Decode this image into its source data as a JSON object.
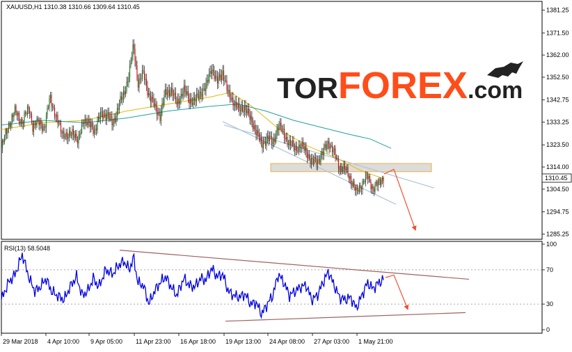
{
  "chart_data": [
    {
      "type": "candlestick",
      "panel": "price",
      "symbol_label": "XAUUSD,H1",
      "ohlc_readout": [
        "1310.38",
        "1310.66",
        "1309.64",
        "1310.45"
      ],
      "current_price_label": "1310.45",
      "ylim": [
        1283.0,
        1385.0
      ],
      "y_ticks": [
        "1381.25",
        "1371.50",
        "1362.00",
        "1352.50",
        "1342.75",
        "1333.25",
        "1323.50",
        "1314.00",
        "1304.50",
        "1294.75",
        "1285.25"
      ],
      "y_tick_values": [
        1381.25,
        1371.5,
        1362.0,
        1352.5,
        1342.75,
        1333.25,
        1323.5,
        1314.0,
        1304.5,
        1294.75,
        1285.25
      ],
      "x_ticks": [
        "29 Mar 2018",
        "4 Apr 10:00",
        "9 Apr 05:00",
        "11 Apr 23:00",
        "16 Apr 18:00",
        "19 Apr 13:00",
        "24 Apr 08:00",
        "27 Apr 03:00",
        "1 May 21:00"
      ],
      "price_path": [
        [
          0,
          1322
        ],
        [
          10,
          1332
        ],
        [
          20,
          1338
        ],
        [
          30,
          1333
        ],
        [
          40,
          1340
        ],
        [
          45,
          1331
        ],
        [
          55,
          1334
        ],
        [
          62,
          1330
        ],
        [
          70,
          1345
        ],
        [
          78,
          1335
        ],
        [
          86,
          1330
        ],
        [
          95,
          1326
        ],
        [
          103,
          1330
        ],
        [
          110,
          1324
        ],
        [
          118,
          1335
        ],
        [
          126,
          1332
        ],
        [
          134,
          1330
        ],
        [
          142,
          1336
        ],
        [
          152,
          1337
        ],
        [
          160,
          1332
        ],
        [
          168,
          1340
        ],
        [
          176,
          1345
        ],
        [
          184,
          1355
        ],
        [
          190,
          1366
        ],
        [
          196,
          1350
        ],
        [
          204,
          1354
        ],
        [
          212,
          1345
        ],
        [
          220,
          1340
        ],
        [
          228,
          1336
        ],
        [
          236,
          1346
        ],
        [
          244,
          1347
        ],
        [
          252,
          1341
        ],
        [
          262,
          1347
        ],
        [
          270,
          1343
        ],
        [
          278,
          1342
        ],
        [
          286,
          1346
        ],
        [
          294,
          1348
        ],
        [
          302,
          1357
        ],
        [
          310,
          1350
        ],
        [
          318,
          1355
        ],
        [
          326,
          1345
        ],
        [
          334,
          1342
        ],
        [
          342,
          1338
        ],
        [
          350,
          1340
        ],
        [
          358,
          1334
        ],
        [
          366,
          1330
        ],
        [
          374,
          1323
        ],
        [
          382,
          1327
        ],
        [
          390,
          1324
        ],
        [
          398,
          1332
        ],
        [
          406,
          1328
        ],
        [
          414,
          1324
        ],
        [
          422,
          1322
        ],
        [
          430,
          1323
        ],
        [
          438,
          1321
        ],
        [
          446,
          1316
        ],
        [
          454,
          1317
        ],
        [
          462,
          1320
        ],
        [
          470,
          1325
        ],
        [
          478,
          1320
        ],
        [
          486,
          1314
        ],
        [
          494,
          1313
        ],
        [
          502,
          1309
        ],
        [
          510,
          1303
        ],
        [
          518,
          1307
        ],
        [
          526,
          1310
        ],
        [
          534,
          1305
        ],
        [
          542,
          1307
        ],
        [
          550,
          1310.45
        ]
      ],
      "moving_averages": [
        {
          "color": "#e6b800",
          "points": [
            [
              0,
              1330
            ],
            [
              60,
              1333
            ],
            [
              120,
              1334
            ],
            [
              180,
              1338
            ],
            [
              240,
              1341
            ],
            [
              300,
              1344
            ],
            [
              330,
              1346
            ],
            [
              360,
              1340
            ],
            [
              400,
              1330
            ],
            [
              440,
              1323
            ],
            [
              480,
              1318
            ],
            [
              520,
              1312
            ],
            [
              550,
              1309
            ]
          ]
        },
        {
          "color": "#20a0a0",
          "points": [
            [
              0,
              1332
            ],
            [
              60,
              1334
            ],
            [
              120,
              1333
            ],
            [
              180,
              1335
            ],
            [
              240,
              1338
            ],
            [
              300,
              1340
            ],
            [
              340,
              1341
            ],
            [
              380,
              1338
            ],
            [
              420,
              1334
            ],
            [
              460,
              1331
            ],
            [
              500,
              1328
            ],
            [
              530,
              1326
            ],
            [
              560,
              1322
            ]
          ]
        }
      ],
      "channel_lines": [
        {
          "color": "#b0c4d6",
          "points": [
            [
              320,
              1332
            ],
            [
              622,
              1305
            ]
          ]
        },
        {
          "color": "#b0c4d6",
          "points": [
            [
              318,
              1333.5
            ],
            [
              567,
              1298
            ]
          ]
        }
      ],
      "resistance_zone": {
        "color": "#f0b040",
        "x": [
          387,
          618
        ],
        "y": [
          1312,
          1315.5
        ]
      },
      "forecast_arrow": {
        "color": "#f05030",
        "points": [
          [
            550,
            1311
          ],
          [
            564,
            1313
          ],
          [
            595,
            1287
          ]
        ]
      },
      "watermark": {
        "part1": "TOR",
        "part2": "FOREX",
        "part3": ".com",
        "color1": "#222222",
        "color2": "#ff4d1a",
        "color3": "#222222"
      }
    },
    {
      "type": "line",
      "panel": "rsi",
      "label": "RSI(13) 58.5048",
      "ylim": [
        0,
        100
      ],
      "y_ticks": [
        "100",
        "70",
        "30",
        "0"
      ],
      "y_tick_values": [
        100,
        70,
        30,
        0
      ],
      "levels": [
        70,
        30
      ],
      "series_color": "#0000e0",
      "rsi_path": [
        [
          0,
          35
        ],
        [
          10,
          55
        ],
        [
          20,
          65
        ],
        [
          30,
          88
        ],
        [
          40,
          60
        ],
        [
          48,
          45
        ],
        [
          56,
          50
        ],
        [
          64,
          60
        ],
        [
          72,
          45
        ],
        [
          80,
          40
        ],
        [
          90,
          35
        ],
        [
          100,
          52
        ],
        [
          108,
          62
        ],
        [
          116,
          40
        ],
        [
          124,
          45
        ],
        [
          132,
          60
        ],
        [
          140,
          50
        ],
        [
          150,
          70
        ],
        [
          160,
          65
        ],
        [
          168,
          75
        ],
        [
          176,
          80
        ],
        [
          184,
          70
        ],
        [
          190,
          85
        ],
        [
          196,
          55
        ],
        [
          204,
          52
        ],
        [
          212,
          30
        ],
        [
          220,
          45
        ],
        [
          228,
          55
        ],
        [
          236,
          62
        ],
        [
          244,
          50
        ],
        [
          252,
          40
        ],
        [
          262,
          60
        ],
        [
          270,
          52
        ],
        [
          278,
          50
        ],
        [
          286,
          60
        ],
        [
          294,
          58
        ],
        [
          302,
          72
        ],
        [
          310,
          62
        ],
        [
          318,
          65
        ],
        [
          326,
          45
        ],
        [
          334,
          40
        ],
        [
          342,
          38
        ],
        [
          350,
          42
        ],
        [
          358,
          30
        ],
        [
          366,
          32
        ],
        [
          374,
          18
        ],
        [
          382,
          30
        ],
        [
          390,
          40
        ],
        [
          398,
          65
        ],
        [
          406,
          55
        ],
        [
          414,
          40
        ],
        [
          422,
          45
        ],
        [
          430,
          50
        ],
        [
          438,
          52
        ],
        [
          446,
          35
        ],
        [
          454,
          40
        ],
        [
          462,
          55
        ],
        [
          470,
          68
        ],
        [
          478,
          52
        ],
        [
          486,
          38
        ],
        [
          494,
          35
        ],
        [
          502,
          38
        ],
        [
          510,
          25
        ],
        [
          518,
          40
        ],
        [
          526,
          55
        ],
        [
          534,
          48
        ],
        [
          542,
          55
        ],
        [
          550,
          58.5
        ]
      ],
      "trend_lines": [
        {
          "color": "#a06060",
          "points": [
            [
              170,
              93
            ],
            [
              672,
              59
            ]
          ]
        },
        {
          "color": "#a06060",
          "points": [
            [
              322,
              10
            ],
            [
              667,
              20
            ]
          ]
        }
      ],
      "forecast_arrow": {
        "color": "#f05030",
        "points": [
          [
            552,
            61
          ],
          [
            564,
            64
          ],
          [
            584,
            24
          ]
        ]
      }
    }
  ]
}
